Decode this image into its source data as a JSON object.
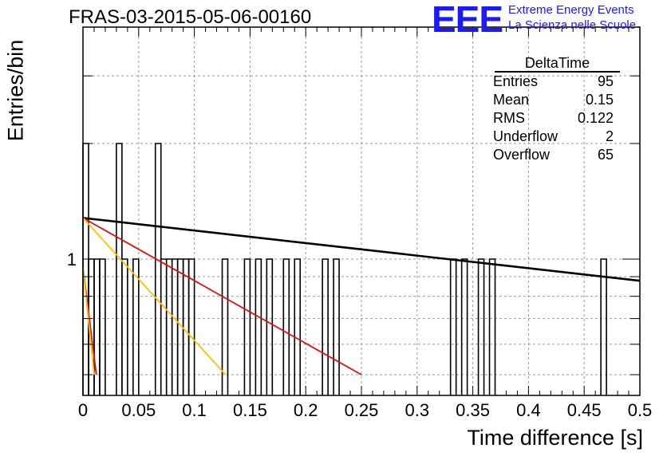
{
  "title": "FRAS-03-2015-05-06-00160",
  "logo": {
    "mark": "EEE",
    "line1": "Extreme Energy Events",
    "line2": "La Scienza nelle Scuole",
    "color": "#1a1aff"
  },
  "stats": {
    "title": "DeltaTime",
    "rows": [
      {
        "label": "Entries",
        "value": "95"
      },
      {
        "label": "Mean",
        "value": "0.15"
      },
      {
        "label": "RMS",
        "value": "0.122"
      },
      {
        "label": "Underflow",
        "value": "2"
      },
      {
        "label": "Overflow",
        "value": "65"
      }
    ]
  },
  "chart_data": {
    "type": "bar",
    "title": "FRAS-03-2015-05-06-00160",
    "xlabel": "Time difference [s]",
    "ylabel": "Entries/bin",
    "xlim": [
      0,
      0.5
    ],
    "ylog": true,
    "grid": true,
    "x_ticks": [
      "0",
      "0.05",
      "0.1",
      "0.15",
      "0.2",
      "0.25",
      "0.3",
      "0.35",
      "0.4",
      "0.45",
      "0.5"
    ],
    "y_ticks": [
      "1"
    ],
    "bin_width": 0.005,
    "bins": [
      {
        "x": 0.0,
        "y": 2
      },
      {
        "x": 0.005,
        "y": 1
      },
      {
        "x": 0.01,
        "y": 1
      },
      {
        "x": 0.015,
        "y": 1
      },
      {
        "x": 0.03,
        "y": 2
      },
      {
        "x": 0.035,
        "y": 1
      },
      {
        "x": 0.045,
        "y": 1
      },
      {
        "x": 0.065,
        "y": 2
      },
      {
        "x": 0.07,
        "y": 1
      },
      {
        "x": 0.075,
        "y": 1
      },
      {
        "x": 0.08,
        "y": 1
      },
      {
        "x": 0.085,
        "y": 1
      },
      {
        "x": 0.09,
        "y": 1
      },
      {
        "x": 0.095,
        "y": 1
      },
      {
        "x": 0.125,
        "y": 1
      },
      {
        "x": 0.145,
        "y": 1
      },
      {
        "x": 0.155,
        "y": 1
      },
      {
        "x": 0.165,
        "y": 1
      },
      {
        "x": 0.18,
        "y": 1
      },
      {
        "x": 0.19,
        "y": 1
      },
      {
        "x": 0.215,
        "y": 1
      },
      {
        "x": 0.225,
        "y": 1
      },
      {
        "x": 0.33,
        "y": 1
      },
      {
        "x": 0.34,
        "y": 1
      },
      {
        "x": 0.355,
        "y": 1
      },
      {
        "x": 0.365,
        "y": 1
      },
      {
        "x": 0.465,
        "y": 1
      }
    ],
    "fits": [
      {
        "color": "#000000",
        "x": [
          0,
          0.5
        ],
        "y": [
          1.28,
          0.878
        ]
      },
      {
        "color": "#dd1111",
        "x": [
          0,
          0.25
        ],
        "y": [
          1.28,
          0.5
        ]
      },
      {
        "color": "#ffc000",
        "x": [
          0,
          0.128
        ],
        "y": [
          1.28,
          0.5
        ]
      },
      {
        "color": "#dd1111",
        "x": [
          0,
          0.012
        ],
        "y": [
          0.95,
          0.5
        ]
      },
      {
        "color": "#ffc000",
        "x": [
          0,
          0.01
        ],
        "y": [
          0.95,
          0.5
        ]
      }
    ]
  }
}
